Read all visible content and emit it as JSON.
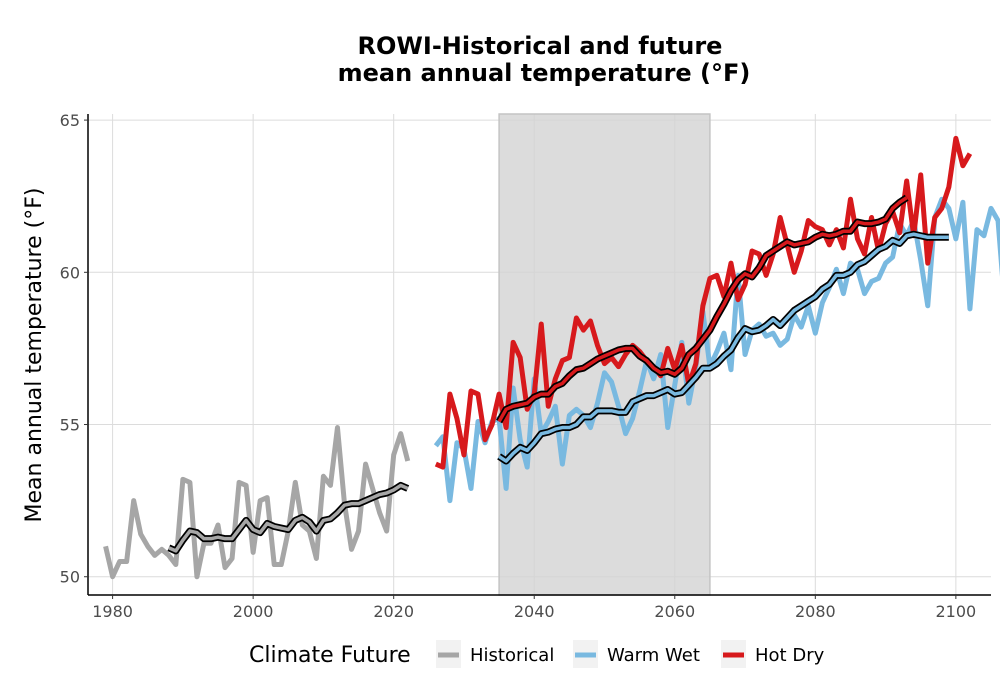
{
  "chart_data": {
    "type": "line",
    "title_line1": "ROWI-Historical and future",
    "title_line2": "mean annual temperature (°F)",
    "xlabel": "",
    "ylabel": "Mean annual temperature (°F)",
    "xlim": [
      1976.5,
      2105
    ],
    "ylim": [
      49.4,
      65.2
    ],
    "x_ticks": [
      1980,
      2000,
      2020,
      2040,
      2060,
      2080,
      2100
    ],
    "y_ticks": [
      50,
      55,
      60,
      65
    ],
    "shaded_period": [
      2035,
      2065
    ],
    "grid": true,
    "legend_title": "Climate Future",
    "legend_position": "bottom",
    "series": [
      {
        "name": "Historical",
        "color": "#a6a6a6",
        "x_start": 1979,
        "values": [
          51.0,
          50.0,
          50.5,
          50.5,
          52.5,
          51.4,
          51.0,
          50.7,
          50.9,
          50.7,
          50.4,
          53.2,
          53.1,
          50.0,
          51.1,
          51.1,
          51.7,
          50.3,
          50.6,
          53.1,
          53.0,
          50.8,
          52.5,
          52.6,
          50.4,
          50.4,
          51.5,
          53.1,
          51.7,
          51.5,
          50.6,
          53.3,
          53.0,
          54.9,
          52.4,
          50.9,
          51.5,
          53.7,
          52.9,
          52.1,
          51.5,
          54.0,
          54.7,
          53.8
        ]
      },
      {
        "name": "Historical rolling mean",
        "color": "#a6a6a6",
        "x_start": 1988,
        "values": [
          50.95,
          50.85,
          51.2,
          51.5,
          51.45,
          51.25,
          51.25,
          51.3,
          51.25,
          51.25,
          51.55,
          51.85,
          51.55,
          51.45,
          51.75,
          51.65,
          51.6,
          51.55,
          51.85,
          51.95,
          51.8,
          51.5,
          51.85,
          51.9,
          52.1,
          52.35,
          52.4,
          52.4,
          52.5,
          52.6,
          52.7,
          52.75,
          52.85,
          53.0,
          52.9
        ]
      },
      {
        "name": "Warm Wet",
        "color": "#79b9e0",
        "x_start": 2026,
        "values": [
          54.3,
          54.6,
          52.5,
          54.4,
          54.2,
          52.9,
          55.1,
          54.4,
          55.1,
          55.2,
          52.9,
          56.2,
          54.5,
          53.6,
          56.5,
          54.7,
          55.1,
          55.6,
          53.7,
          55.3,
          55.5,
          55.3,
          54.9,
          55.7,
          56.7,
          56.4,
          55.6,
          54.7,
          55.2,
          56.1,
          57.1,
          56.5,
          57.3,
          54.9,
          56.3,
          57.7,
          55.7,
          56.9,
          58.7,
          56.9,
          57.4,
          58.0,
          56.8,
          59.9,
          57.3,
          58.1,
          58.3,
          57.9,
          58.0,
          57.6,
          57.8,
          58.6,
          58.2,
          58.9,
          58.0,
          59.0,
          59.5,
          60.1,
          59.3,
          60.3,
          60.1,
          59.3,
          59.7,
          59.8,
          60.3,
          60.5,
          61.6,
          61.2,
          61.7,
          60.4,
          58.9,
          61.8,
          62.4,
          62.1,
          61.1,
          62.3,
          58.8,
          61.4,
          61.2,
          62.1,
          61.7,
          58.8,
          60.7,
          62.1,
          62.5
        ]
      },
      {
        "name": "Warm Wet rolling mean",
        "color": "#79b9e0",
        "x_start": 2035,
        "values": [
          53.95,
          53.8,
          54.05,
          54.25,
          54.15,
          54.4,
          54.7,
          54.75,
          54.85,
          54.9,
          54.9,
          55.0,
          55.25,
          55.25,
          55.45,
          55.45,
          55.45,
          55.4,
          55.4,
          55.75,
          55.85,
          55.95,
          55.95,
          56.05,
          56.15,
          56.0,
          56.05,
          56.3,
          56.55,
          56.85,
          56.85,
          57.0,
          57.25,
          57.45,
          57.85,
          58.15,
          58.05,
          58.1,
          58.25,
          58.45,
          58.25,
          58.5,
          58.75,
          58.9,
          59.05,
          59.2,
          59.45,
          59.6,
          59.9,
          59.9,
          60.0,
          60.25,
          60.35,
          60.55,
          60.75,
          60.85,
          61.05,
          60.95,
          61.2,
          61.25,
          61.2,
          61.15,
          61.15,
          61.15,
          61.15
        ]
      },
      {
        "name": "Hot Dry",
        "color": "#d7191c",
        "x_start": 2026,
        "values": [
          53.7,
          53.6,
          56.0,
          55.2,
          54.0,
          56.1,
          56.0,
          54.5,
          55.0,
          56.0,
          54.9,
          57.7,
          57.2,
          55.5,
          56.0,
          58.3,
          55.6,
          56.5,
          57.1,
          57.2,
          58.5,
          58.1,
          58.4,
          57.6,
          57.0,
          57.2,
          56.9,
          57.3,
          57.6,
          57.4,
          57.1,
          56.9,
          56.6,
          57.5,
          56.8,
          57.6,
          56.3,
          57.0,
          58.9,
          59.8,
          59.9,
          59.2,
          60.3,
          59.1,
          59.6,
          60.7,
          60.6,
          59.9,
          60.6,
          61.8,
          60.9,
          60.0,
          60.7,
          61.7,
          61.5,
          61.4,
          60.9,
          61.4,
          60.8,
          62.4,
          61.1,
          60.6,
          61.8,
          60.7,
          61.6,
          62.0,
          61.3,
          63.0,
          61.2,
          63.2,
          60.3,
          61.8,
          62.1,
          62.8,
          64.4,
          63.5,
          63.9
        ]
      },
      {
        "name": "Hot Dry rolling mean",
        "color": "#d7191c",
        "x_start": 2035,
        "values": [
          55.1,
          55.5,
          55.6,
          55.65,
          55.7,
          55.9,
          56.0,
          56.0,
          56.25,
          56.35,
          56.6,
          56.8,
          56.85,
          57.0,
          57.15,
          57.25,
          57.35,
          57.45,
          57.5,
          57.5,
          57.25,
          57.1,
          56.85,
          56.7,
          56.75,
          56.65,
          56.85,
          57.3,
          57.5,
          57.8,
          58.1,
          58.55,
          58.95,
          59.4,
          59.75,
          59.95,
          59.85,
          60.15,
          60.55,
          60.7,
          60.85,
          61.0,
          60.9,
          60.95,
          61.0,
          61.15,
          61.25,
          61.2,
          61.25,
          61.35,
          61.35,
          61.65,
          61.6,
          61.6,
          61.65,
          61.75,
          62.1,
          62.3,
          62.45
        ]
      }
    ]
  }
}
